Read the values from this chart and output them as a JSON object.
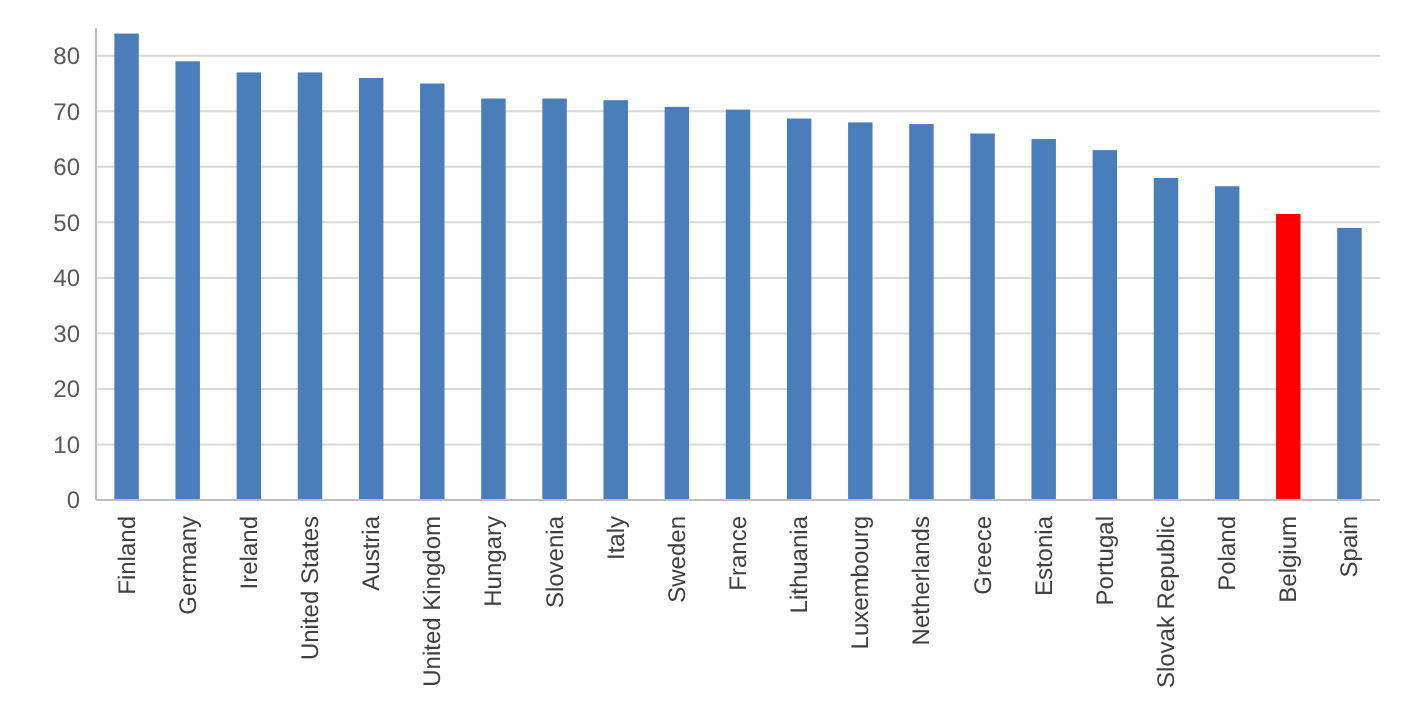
{
  "chart_data": {
    "type": "bar",
    "categories": [
      "Finland",
      "Germany",
      "Ireland",
      "United States",
      "Austria",
      "United Kingdom",
      "Hungary",
      "Slovenia",
      "Italy",
      "Sweden",
      "France",
      "Lithuania",
      "Luxembourg",
      "Netherlands",
      "Greece",
      "Estonia",
      "Portugal",
      "Slovak Republic",
      "Poland",
      "Belgium",
      "Spain"
    ],
    "values": [
      84,
      79,
      77,
      77,
      76,
      75,
      72.3,
      72.3,
      72,
      70.8,
      70.3,
      68.7,
      68,
      67.7,
      66,
      65,
      63,
      58,
      56.5,
      51.5,
      49
    ],
    "colors": [
      "#4a7ebb",
      "#4a7ebb",
      "#4a7ebb",
      "#4a7ebb",
      "#4a7ebb",
      "#4a7ebb",
      "#4a7ebb",
      "#4a7ebb",
      "#4a7ebb",
      "#4a7ebb",
      "#4a7ebb",
      "#4a7ebb",
      "#4a7ebb",
      "#4a7ebb",
      "#4a7ebb",
      "#4a7ebb",
      "#4a7ebb",
      "#4a7ebb",
      "#4a7ebb",
      "#ff0000",
      "#4a7ebb"
    ],
    "ylim": [
      0,
      85
    ],
    "yticks": [
      0,
      10,
      20,
      30,
      40,
      50,
      60,
      70,
      80
    ],
    "grid": "y"
  }
}
